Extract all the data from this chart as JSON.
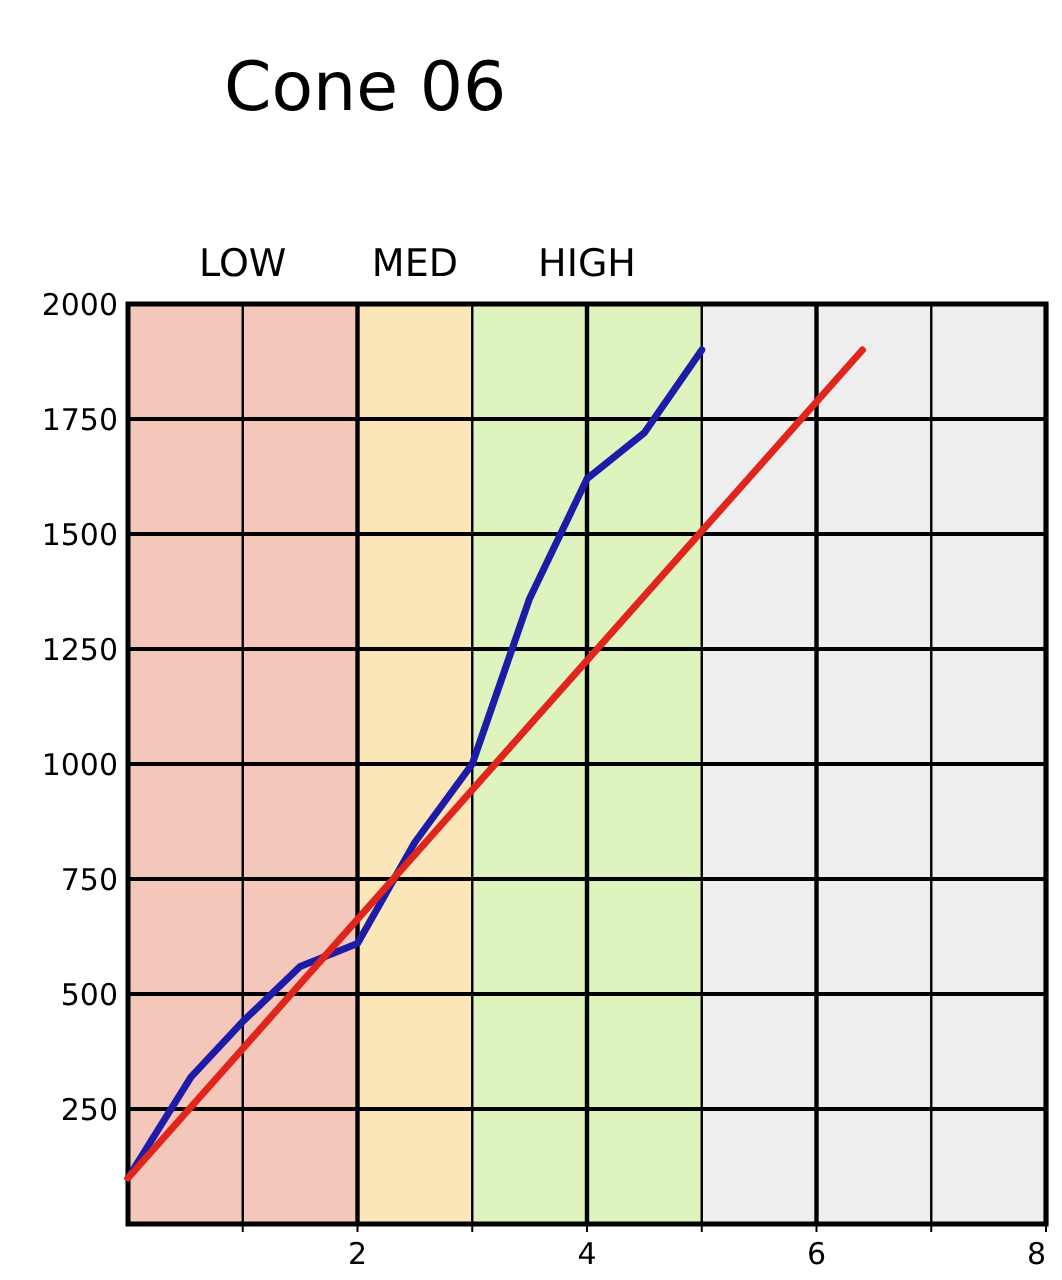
{
  "chart_data": {
    "type": "line",
    "title": "Cone 06",
    "x": [
      0,
      0.55,
      1,
      1.5,
      2,
      2.5,
      3,
      3.5,
      4,
      4.5,
      5
    ],
    "series": [
      {
        "color": "#1c1ca8",
        "values": [
          100,
          320,
          440,
          560,
          610,
          830,
          1000,
          1360,
          1620,
          1720,
          1900
        ]
      },
      {
        "color": "#e0251c",
        "x": [
          0,
          6.4
        ],
        "values": [
          100,
          1900
        ]
      }
    ],
    "xlim": [
      0,
      8
    ],
    "xticks": [
      {
        "value": 1,
        "label": null
      },
      2,
      {
        "value": 3,
        "label": null
      },
      4,
      {
        "value": 5,
        "label": null
      },
      6,
      {
        "value": 7,
        "label": null
      },
      8
    ],
    "ylim": [
      0,
      2000
    ],
    "yticks": [
      250,
      500,
      750,
      1000,
      1250,
      1500,
      1750,
      2000
    ],
    "bands": [
      {
        "axis": "x",
        "from": 0,
        "to": 2,
        "label": "LOW",
        "color": "#f3c8bb"
      },
      {
        "axis": "x",
        "from": 2,
        "to": 3,
        "label": "MED",
        "color": "#fbe6b9"
      },
      {
        "axis": "x",
        "from": 3,
        "to": 5,
        "label": "HIGH",
        "color": "#def3bd"
      },
      {
        "axis": "x",
        "from": 5,
        "to": 8,
        "color": "#eeeeee"
      }
    ],
    "grid": true,
    "marker": "none",
    "line_style": "solid"
  }
}
